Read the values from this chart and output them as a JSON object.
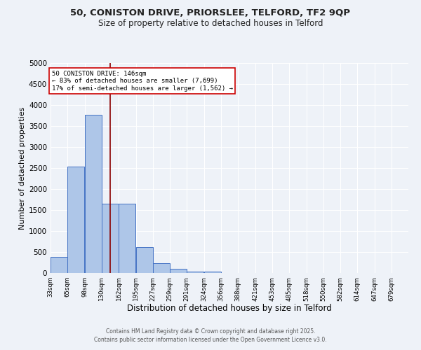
{
  "title_line1": "50, CONISTON DRIVE, PRIORSLEE, TELFORD, TF2 9QP",
  "title_line2": "Size of property relative to detached houses in Telford",
  "xlabel": "Distribution of detached houses by size in Telford",
  "ylabel": "Number of detached properties",
  "bar_values": [
    390,
    2530,
    3760,
    1650,
    1650,
    620,
    230,
    100,
    40,
    40,
    0,
    0,
    0,
    0,
    0,
    0,
    0,
    0,
    0,
    0
  ],
  "bin_labels": [
    "33sqm",
    "65sqm",
    "98sqm",
    "130sqm",
    "162sqm",
    "195sqm",
    "227sqm",
    "259sqm",
    "291sqm",
    "324sqm",
    "356sqm",
    "388sqm",
    "421sqm",
    "453sqm",
    "485sqm",
    "518sqm",
    "550sqm",
    "582sqm",
    "614sqm",
    "647sqm",
    "679sqm"
  ],
  "bin_edges": [
    33,
    65,
    98,
    130,
    162,
    195,
    227,
    259,
    291,
    324,
    356,
    388,
    421,
    453,
    485,
    518,
    550,
    582,
    614,
    647,
    679
  ],
  "bar_color": "#aec6e8",
  "bar_edge_color": "#4472c4",
  "bg_color": "#eef2f8",
  "grid_color": "#ffffff",
  "vline_x": 146,
  "vline_color": "#8b0000",
  "annotation_line1": "50 CONISTON DRIVE: 146sqm",
  "annotation_line2": "← 83% of detached houses are smaller (7,699)",
  "annotation_line3": "17% of semi-detached houses are larger (1,562) →",
  "annotation_box_color": "#ffffff",
  "annotation_box_edge": "#cc0000",
  "ylim": [
    0,
    5000
  ],
  "yticks": [
    0,
    500,
    1000,
    1500,
    2000,
    2500,
    3000,
    3500,
    4000,
    4500,
    5000
  ],
  "footer_line1": "Contains HM Land Registry data © Crown copyright and database right 2025.",
  "footer_line2": "Contains public sector information licensed under the Open Government Licence v3.0."
}
